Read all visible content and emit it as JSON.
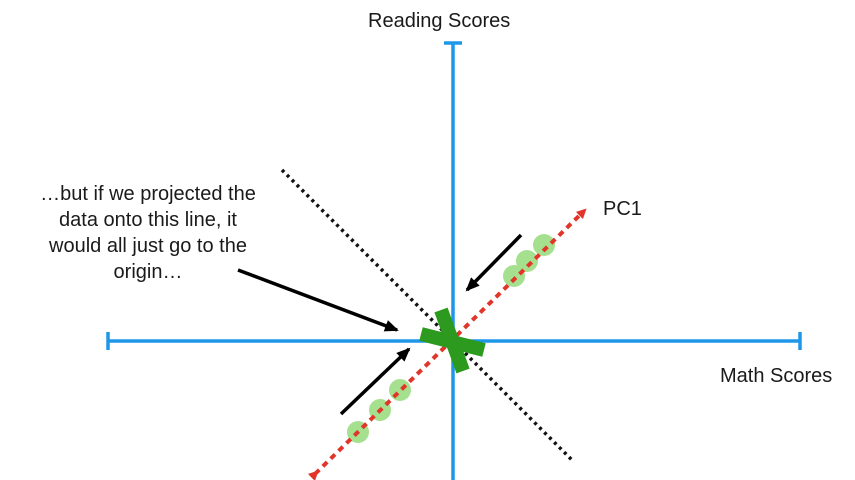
{
  "axes": {
    "x_label": "Math Scores",
    "y_label": "Reading Scores"
  },
  "pc_label": "PC1",
  "annotation": "…but if we projected the\ndata onto this line, it\nwould all just go to the\norigin…",
  "colors": {
    "axis": "#1e97e8",
    "pc_line": "#e2352a",
    "perp_line": "#111111",
    "points": "#a5e08f",
    "origin_marker": "#2c9a1e",
    "arrows": "#000000"
  }
}
